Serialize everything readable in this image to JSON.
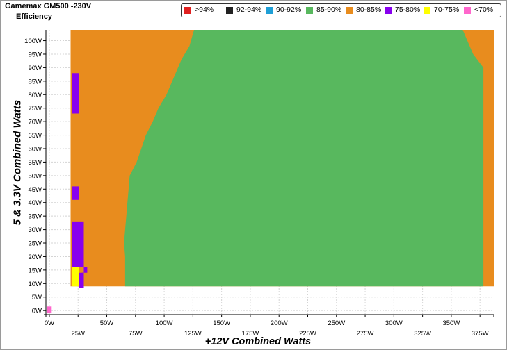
{
  "chart_data": {
    "type": "heatmap",
    "title": "Gamemax GM500 -230V",
    "subtitle": "Efficiency",
    "xlabel": "+12V Combined Watts",
    "ylabel": "5 & 3.3V Combined Watts",
    "xlim": [
      -3,
      387
    ],
    "ylim": [
      -1.5,
      104
    ],
    "x_ticks": [
      "0W",
      "25W",
      "50W",
      "75W",
      "100W",
      "125W",
      "150W",
      "175W",
      "200W",
      "225W",
      "250W",
      "275W",
      "300W",
      "325W",
      "350W",
      "375W"
    ],
    "y_ticks": [
      "0W",
      "5W",
      "10W",
      "15W",
      "20W",
      "25W",
      "30W",
      "35W",
      "40W",
      "45W",
      "50W",
      "55W",
      "60W",
      "65W",
      "70W",
      "75W",
      "80W",
      "85W",
      "90W",
      "95W",
      "100W"
    ],
    "grid": true,
    "legend_position": "top-right",
    "legend": [
      {
        "label": ">94%",
        "color": "#e02020"
      },
      {
        "label": "92-94%",
        "color": "#222222"
      },
      {
        "label": "90-92%",
        "color": "#1f9fd6"
      },
      {
        "label": "85-90%",
        "color": "#58b85e"
      },
      {
        "label": "80-85%",
        "color": "#e88c1e"
      },
      {
        "label": "75-80%",
        "color": "#8800ee"
      },
      {
        "label": "70-75%",
        "color": "#ffff00"
      },
      {
        "label": "<70%",
        "color": "#ff66cc"
      }
    ],
    "regions": [
      {
        "band": "80-85%",
        "color": "#e88c1e",
        "points": [
          [
            18.5,
            9
          ],
          [
            387,
            9
          ],
          [
            387,
            104
          ],
          [
            18.5,
            104
          ]
        ]
      },
      {
        "band": "85-90%",
        "color": "#58b85e",
        "points": [
          [
            66,
            9
          ],
          [
            378,
            9
          ],
          [
            378,
            90
          ],
          [
            369,
            95
          ],
          [
            360,
            104
          ],
          [
            126,
            104
          ],
          [
            122,
            98
          ],
          [
            115,
            93
          ],
          [
            110,
            88
          ],
          [
            106,
            84
          ],
          [
            102,
            80
          ],
          [
            95,
            75
          ],
          [
            90,
            70
          ],
          [
            84,
            65
          ],
          [
            80,
            60
          ],
          [
            76,
            55
          ],
          [
            70,
            50
          ],
          [
            69,
            45
          ],
          [
            68,
            40
          ],
          [
            67,
            35
          ],
          [
            66,
            30
          ],
          [
            65,
            25
          ],
          [
            66,
            20
          ],
          [
            66,
            15
          ]
        ]
      },
      {
        "band": "75-80%",
        "color": "#8800ee",
        "points": [
          [
            20,
            73
          ],
          [
            26,
            73
          ],
          [
            26,
            88
          ],
          [
            20,
            88
          ]
        ]
      },
      {
        "band": "75-80%",
        "color": "#8800ee",
        "points": [
          [
            20,
            41
          ],
          [
            26,
            41
          ],
          [
            26,
            46
          ],
          [
            20,
            46
          ]
        ]
      },
      {
        "band": "75-80%",
        "color": "#8800ee",
        "points": [
          [
            20,
            16
          ],
          [
            33,
            16
          ],
          [
            33,
            14
          ],
          [
            28,
            14
          ],
          [
            28,
            11
          ],
          [
            30,
            11
          ],
          [
            30,
            33
          ],
          [
            20,
            33
          ]
        ]
      },
      {
        "band": "75-80%",
        "color": "#8800ee",
        "points": [
          [
            26,
            8.5
          ],
          [
            30,
            8.5
          ],
          [
            30,
            14
          ],
          [
            26,
            14
          ]
        ]
      },
      {
        "band": "70-75%",
        "color": "#ffff00",
        "points": [
          [
            20,
            9
          ],
          [
            26,
            9
          ],
          [
            26,
            16
          ],
          [
            20,
            16
          ]
        ]
      },
      {
        "band": "<70%",
        "color": "#ff66cc",
        "points": [
          [
            -2,
            -1
          ],
          [
            2,
            -1
          ],
          [
            2,
            1.5
          ],
          [
            -2,
            1.5
          ]
        ]
      }
    ]
  }
}
